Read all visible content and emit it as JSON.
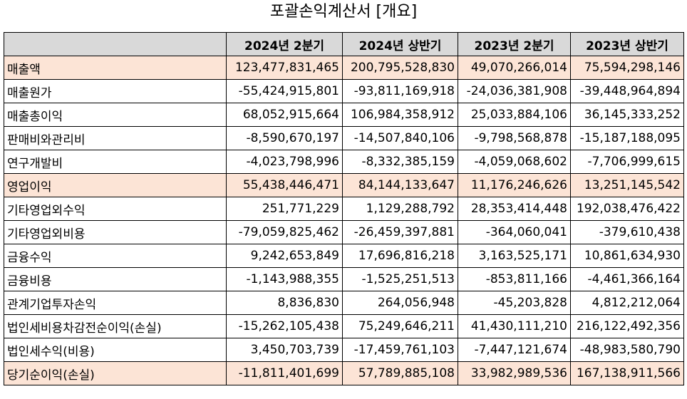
{
  "title": "포괄손익계산서 [개요]",
  "columns": [
    "",
    "2024년 2분기",
    "2024년 상반기",
    "2023년 2분기",
    "2023년 상반기"
  ],
  "highlight_color": "#fce4d6",
  "header_color": "#d9d9d9",
  "rows": [
    {
      "label": "매출액",
      "highlight": true,
      "values": [
        "123,477,831,465",
        "200,795,528,830",
        "49,070,266,014",
        "75,594,298,146"
      ]
    },
    {
      "label": "매출원가",
      "highlight": false,
      "values": [
        "-55,424,915,801",
        "-93,811,169,918",
        "-24,036,381,908",
        "-39,448,964,894"
      ]
    },
    {
      "label": "매출총이익",
      "highlight": false,
      "values": [
        "68,052,915,664",
        "106,984,358,912",
        "25,033,884,106",
        "36,145,333,252"
      ]
    },
    {
      "label": "판매비와관리비",
      "highlight": false,
      "values": [
        "-8,590,670,197",
        "-14,507,840,106",
        "-9,798,568,878",
        "-15,187,188,095"
      ]
    },
    {
      "label": "연구개발비",
      "highlight": false,
      "values": [
        "-4,023,798,996",
        "-8,332,385,159",
        "-4,059,068,602",
        "-7,706,999,615"
      ]
    },
    {
      "label": "영업이익",
      "highlight": true,
      "values": [
        "55,438,446,471",
        "84,144,133,647",
        "11,176,246,626",
        "13,251,145,542"
      ]
    },
    {
      "label": "기타영업외수익",
      "highlight": false,
      "values": [
        "251,771,229",
        "1,129,288,792",
        "28,353,414,448",
        "192,038,476,422"
      ]
    },
    {
      "label": "기타영업외비용",
      "highlight": false,
      "values": [
        "-79,059,825,462",
        "-26,459,397,881",
        "-364,060,041",
        "-379,610,438"
      ]
    },
    {
      "label": "금융수익",
      "highlight": false,
      "values": [
        "9,242,653,849",
        "17,696,816,218",
        "3,163,525,171",
        "10,861,634,930"
      ]
    },
    {
      "label": "금융비용",
      "highlight": false,
      "values": [
        "-1,143,988,355",
        "-1,525,251,513",
        "-853,811,166",
        "-4,461,366,164"
      ]
    },
    {
      "label": "관계기업투자손익",
      "highlight": false,
      "values": [
        "8,836,830",
        "264,056,948",
        "-45,203,828",
        "4,812,212,064"
      ]
    },
    {
      "label": "법인세비용차감전순이익(손실)",
      "highlight": false,
      "values": [
        "-15,262,105,438",
        "75,249,646,211",
        "41,430,111,210",
        "216,122,492,356"
      ]
    },
    {
      "label": "법인세수익(비용)",
      "highlight": false,
      "values": [
        "3,450,703,739",
        "-17,459,761,103",
        "-7,447,121,674",
        "-48,983,580,790"
      ]
    },
    {
      "label": "당기순이익(손실)",
      "highlight": true,
      "values": [
        "-11,811,401,699",
        "57,789,885,108",
        "33,982,989,536",
        "167,138,911,566"
      ]
    }
  ]
}
